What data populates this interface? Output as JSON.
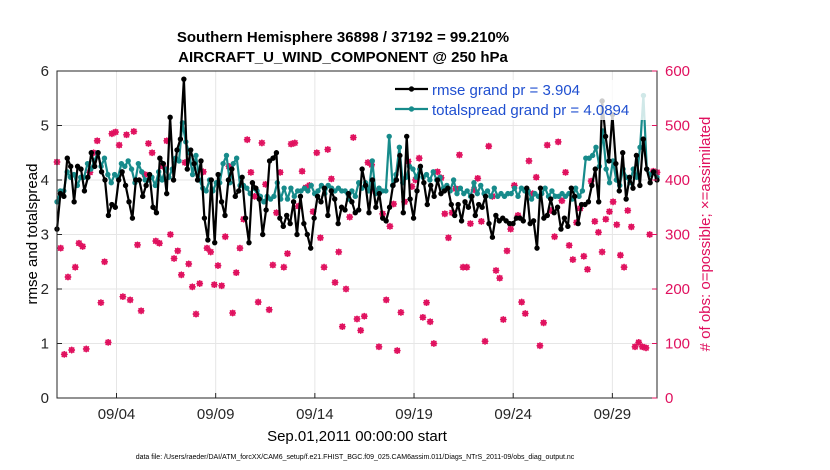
{
  "chart_data": {
    "type": "line",
    "title": "Southern Hemisphere 36898 / 37192 = 99.210%",
    "subtitle": "AIRCRAFT_U_WIND_COMPONENT @ 250 hPa",
    "xlabel": "Sep.01,2011 00:00:00 start",
    "ylabel_left": "rmse and totalspread",
    "ylabel_right": "# of obs: o=possible; ×=assimilated",
    "footer": "data file: /Users/raeder/DAI/ATM_forcXX/CAM6_setup/f.e21.FHIST_BGC.f09_025.CAM6assim.011/Diags_NTrS_2011-09/obs_diag_output.nc",
    "xlim": [
      1,
      31.25
    ],
    "ylim_left": [
      0,
      6
    ],
    "ylim_right": [
      0,
      600
    ],
    "x_ticks": [
      4,
      9,
      14,
      19,
      24,
      29
    ],
    "x_tick_labels": [
      "09/04",
      "09/09",
      "09/14",
      "09/19",
      "09/24",
      "09/29"
    ],
    "y_left_ticks": [
      0,
      1,
      2,
      3,
      4,
      5,
      6
    ],
    "y_left_tick_labels": [
      "0",
      "1",
      "2",
      "3",
      "4",
      "5",
      "6"
    ],
    "y_right_ticks": [
      0,
      100,
      200,
      300,
      400,
      500,
      600
    ],
    "y_right_tick_labels": [
      "0",
      "100",
      "200",
      "300",
      "400",
      "500",
      "600"
    ],
    "grid": true,
    "legend_position": "top-right",
    "series": [
      {
        "name": "rmse grand pr = 3.904",
        "color": "#000000",
        "axis": "left",
        "values": [
          3.1,
          3.75,
          3.7,
          4.4,
          4.25,
          3.6,
          4.25,
          4.2,
          3.8,
          4.05,
          4.5,
          4.25,
          4.5,
          4.15,
          4.0,
          3.35,
          3.55,
          3.5,
          4.0,
          4.15,
          3.9,
          3.6,
          3.3,
          4.0,
          4.0,
          3.7,
          3.9,
          4.1,
          3.5,
          3.4,
          4.4,
          4.3,
          3.75,
          5.15,
          4.0,
          4.55,
          4.75,
          5.85,
          4.2,
          4.55,
          4.3,
          4.0,
          4.35,
          3.3,
          2.9,
          4.0,
          2.85,
          4.1,
          3.6,
          3.35,
          4.0,
          4.2,
          3.7,
          3.8,
          4.05,
          3.3,
          2.85,
          3.95,
          3.85,
          3.65,
          3.0,
          3.45,
          4.35,
          4.4,
          4.5,
          3.3,
          3.15,
          3.35,
          3.2,
          3.6,
          3.0,
          3.7,
          3.2,
          3.0,
          2.75,
          3.3,
          3.7,
          3.6,
          3.85,
          3.35,
          3.8,
          3.65,
          3.2,
          3.5,
          3.45,
          3.75,
          3.6,
          3.4,
          3.45,
          4.2,
          3.9,
          3.4,
          4.0,
          3.5,
          3.75,
          3.3,
          3.25,
          3.5,
          3.9,
          4.0,
          4.45,
          3.4,
          4.8,
          3.65,
          3.3,
          3.8,
          4.25,
          3.95,
          3.55,
          3.9,
          3.7,
          4.0,
          3.75,
          3.8,
          3.85,
          3.55,
          3.35,
          3.55,
          3.25,
          3.6,
          3.5,
          3.7,
          3.35,
          3.55,
          3.5,
          3.7,
          3.2,
          2.95,
          3.35,
          3.25,
          3.3,
          3.25,
          3.2,
          3.2,
          3.3,
          3.3,
          3.25,
          3.85,
          3.2,
          3.25,
          2.75,
          3.85,
          3.3,
          3.35,
          3.65,
          3.4,
          3.5,
          3.1,
          3.3,
          3.15,
          3.85,
          3.7,
          3.2,
          3.55,
          3.55,
          3.6,
          3.9,
          4.2,
          3.6,
          5.45,
          4.8,
          4.35,
          5.2,
          4.3,
          3.8,
          4.5,
          3.65,
          4.05,
          3.85,
          4.45,
          3.9,
          4.75,
          4.2,
          3.95,
          4.15,
          4.0
        ]
      },
      {
        "name": "totalspread grand pr = 4.0894",
        "color": "#178b8b",
        "axis": "left",
        "values": [
          3.6,
          3.8,
          3.8,
          4.15,
          4.05,
          4.1,
          3.9,
          4.05,
          4.05,
          4.3,
          4.2,
          4.35,
          4.5,
          4.25,
          4.4,
          4.1,
          3.95,
          4.1,
          4.05,
          4.3,
          4.25,
          4.35,
          4.2,
          3.95,
          4.3,
          4.15,
          4.0,
          4.0,
          4.05,
          3.9,
          4.15,
          4.0,
          4.2,
          4.05,
          4.2,
          4.4,
          4.35,
          5.05,
          4.7,
          4.5,
          4.1,
          4.45,
          4.0,
          3.85,
          3.8,
          4.0,
          3.8,
          3.95,
          3.95,
          4.3,
          4.45,
          3.95,
          4.3,
          4.4,
          3.9,
          3.9,
          3.85,
          3.75,
          3.85,
          3.8,
          3.7,
          3.6,
          3.7,
          3.65,
          3.7,
          3.95,
          3.65,
          3.85,
          3.65,
          3.85,
          3.7,
          3.8,
          3.8,
          3.85,
          3.8,
          3.9,
          3.75,
          3.8,
          3.9,
          3.75,
          3.9,
          3.85,
          3.8,
          3.85,
          3.8,
          3.8,
          3.65,
          3.8,
          3.7,
          3.95,
          3.85,
          3.95,
          3.8,
          4.35,
          3.75,
          3.85,
          3.8,
          3.8,
          4.8,
          3.9,
          4.1,
          4.6,
          3.95,
          4.05,
          4.25,
          4.2,
          4.05,
          4.2,
          4.05,
          4.1,
          4.0,
          4.15,
          4.0,
          4.05,
          3.85,
          3.9,
          3.8,
          4.0,
          3.75,
          3.85,
          3.75,
          3.8,
          3.7,
          3.95,
          3.75,
          3.9,
          3.75,
          3.8,
          3.7,
          3.85,
          3.7,
          3.75,
          3.7,
          3.75,
          3.75,
          3.85,
          3.7,
          3.85,
          3.8,
          3.8,
          3.65,
          3.75,
          3.7,
          3.75,
          3.85,
          3.7,
          3.8,
          3.7,
          3.7,
          3.75,
          3.7,
          3.75,
          3.65,
          3.85,
          3.7,
          3.8,
          4.4,
          4.4,
          4.45,
          4.6,
          4.25,
          4.9,
          4.2,
          3.95,
          4.35,
          4.0,
          3.9,
          4.2,
          4.05,
          3.95,
          4.2,
          4.05,
          4.6,
          5.55,
          4.2,
          4.1,
          4.15,
          4.05
        ]
      },
      {
        "name": "# of obs possible",
        "color": "#e0105e",
        "axis": "right",
        "values": [
          433,
          275,
          80,
          222,
          88,
          240,
          284,
          278,
          90,
          414,
          450,
          472,
          175,
          250,
          102,
          485,
          488,
          464,
          186,
          483,
          180,
          489,
          281,
          160,
          410,
          467,
          450,
          288,
          284,
          425,
          472,
          300,
          256,
          270,
          226,
          432,
          246,
          204,
          154,
          210,
          415,
          275,
          268,
          208,
          243,
          206,
          296,
          425,
          156,
          230,
          275,
          328,
          474,
          414,
          370,
          176,
          468,
          392,
          162,
          244,
          340,
          414,
          240,
          265,
          466,
          468,
          352,
          416,
          386,
          390,
          342,
          450,
          294,
          240,
          456,
          402,
          212,
          268,
          131,
          200,
          332,
          478,
          145,
          124,
          150,
          432,
          428,
          380,
          94,
          338,
          180,
          315,
          356,
          87,
          157,
          360,
          434,
          388,
          400,
          440,
          148,
          175,
          140,
          100,
          415,
          404,
          338,
          294,
          340,
          384,
          446,
          240,
          240,
          320,
          382,
          403,
          324,
          104,
          462,
          370,
          234,
          220,
          144,
          270,
          310,
          390,
          335,
          176,
          155,
          435,
          375,
          405,
          96,
          138,
          464,
          344,
          296,
          470,
          362,
          414,
          280,
          254,
          322,
          348,
          260,
          236,
          398,
          324,
          304,
          268,
          328,
          342,
          360,
          318,
          262,
          240,
          344,
          314,
          94,
          102,
          94,
          92,
          300,
          416,
          414
        ]
      },
      {
        "name": "# of obs assimilated",
        "color": "#e0105e",
        "axis": "right",
        "values": [
          433,
          275,
          80,
          222,
          88,
          240,
          284,
          278,
          90,
          414,
          450,
          472,
          175,
          250,
          102,
          485,
          488,
          464,
          186,
          483,
          180,
          489,
          281,
          160,
          410,
          467,
          450,
          288,
          284,
          425,
          472,
          300,
          256,
          270,
          226,
          432,
          246,
          204,
          154,
          210,
          415,
          275,
          268,
          208,
          243,
          206,
          296,
          425,
          156,
          230,
          275,
          328,
          474,
          414,
          370,
          176,
          468,
          392,
          162,
          244,
          340,
          414,
          240,
          265,
          466,
          468,
          352,
          416,
          386,
          390,
          342,
          450,
          294,
          240,
          456,
          402,
          212,
          268,
          131,
          200,
          332,
          478,
          145,
          124,
          150,
          432,
          428,
          380,
          94,
          338,
          180,
          315,
          356,
          87,
          157,
          360,
          434,
          388,
          400,
          440,
          148,
          175,
          140,
          100,
          415,
          404,
          338,
          294,
          340,
          384,
          446,
          240,
          240,
          320,
          382,
          403,
          324,
          104,
          462,
          370,
          234,
          220,
          144,
          270,
          310,
          390,
          335,
          176,
          155,
          435,
          375,
          405,
          96,
          138,
          464,
          344,
          296,
          470,
          362,
          414,
          280,
          254,
          322,
          348,
          260,
          236,
          398,
          324,
          304,
          268,
          328,
          342,
          360,
          318,
          262,
          240,
          344,
          314,
          94,
          102,
          94,
          92,
          300,
          416,
          414
        ]
      }
    ]
  },
  "colors": {
    "rmse": "#000000",
    "spread": "#178b8b",
    "obs": "#e0105e",
    "legend_text": "#1f4fd0",
    "grid": "#e6e6e6"
  }
}
